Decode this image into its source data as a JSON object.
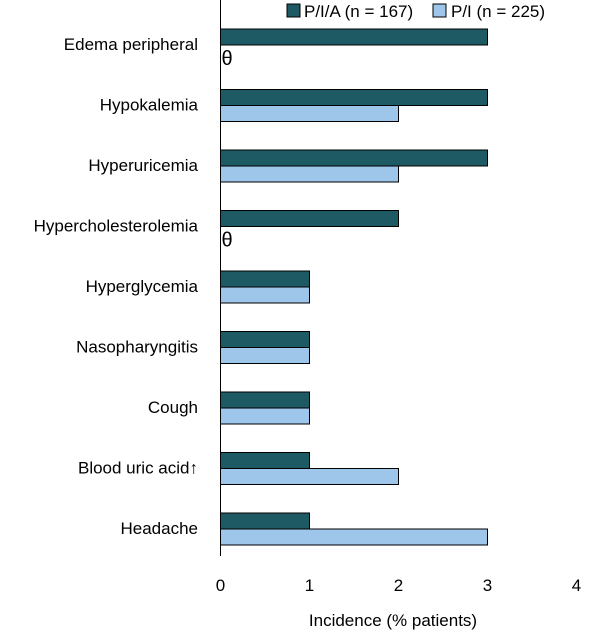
{
  "chart_data": {
    "type": "bar",
    "orientation": "horizontal",
    "categories": [
      "Edema peripheral",
      "Hypokalemia",
      "Hyperuricemia",
      "Hypercholesterolemia",
      "Hyperglycemia",
      "Nasopharyngitis",
      "Cough",
      "Blood uric acid↑",
      "Headache"
    ],
    "series": [
      {
        "name": "P/I/A (n = 167)",
        "color": "#1e5a63",
        "values": [
          3,
          3,
          3,
          2,
          1,
          1,
          1,
          1,
          1
        ]
      },
      {
        "name": "P/I (n = 225)",
        "color": "#9ec5ea",
        "values": [
          0,
          2,
          2,
          0,
          1,
          1,
          1,
          2,
          3
        ]
      }
    ],
    "zero_value_marker": "θ",
    "xlabel": "Incidence (% patients)",
    "ylabel": "",
    "title": "",
    "xlim": [
      0,
      4
    ],
    "xticks": [
      "0",
      "1",
      "2",
      "3",
      "4"
    ],
    "grid": false,
    "legend_position": "top-right"
  }
}
